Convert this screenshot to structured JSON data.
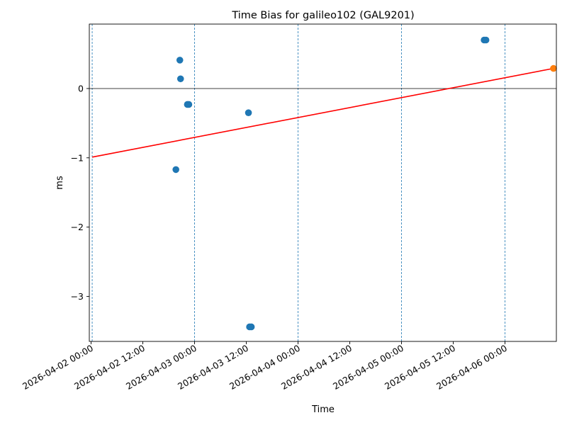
{
  "chart_data": {
    "type": "scatter",
    "title": "Time Bias for galileo102 (GAL9201)",
    "xlabel": "Time",
    "ylabel": "ms",
    "xlim": [
      "2026-04-01T23:35:00",
      "2026-04-06T11:55:00"
    ],
    "ylim": [
      -3.65,
      0.93
    ],
    "x_ticks": [
      {
        "t": "2026-04-02T00:00:00",
        "label": "2026-04-02 00:00"
      },
      {
        "t": "2026-04-02T12:00:00",
        "label": "2026-04-02 12:00"
      },
      {
        "t": "2026-04-03T00:00:00",
        "label": "2026-04-03 00:00"
      },
      {
        "t": "2026-04-03T12:00:00",
        "label": "2026-04-03 12:00"
      },
      {
        "t": "2026-04-04T00:00:00",
        "label": "2026-04-04 00:00"
      },
      {
        "t": "2026-04-04T12:00:00",
        "label": "2026-04-04 12:00"
      },
      {
        "t": "2026-04-05T00:00:00",
        "label": "2026-04-05 00:00"
      },
      {
        "t": "2026-04-05T12:00:00",
        "label": "2026-04-05 12:00"
      },
      {
        "t": "2026-04-06T00:00:00",
        "label": "2026-04-06 00:00"
      }
    ],
    "y_ticks": [
      {
        "v": 0,
        "label": "0"
      },
      {
        "v": -1,
        "label": "−1"
      },
      {
        "v": -2,
        "label": "−2"
      },
      {
        "v": -3,
        "label": "−3"
      }
    ],
    "vertical_lines": [
      "2026-04-02T00:15:00",
      "2026-04-03T00:00:00",
      "2026-04-04T00:00:00",
      "2026-04-05T00:00:00",
      "2026-04-06T00:00:00"
    ],
    "zero_line": 0,
    "series": [
      {
        "kind": "scatter",
        "color": "#1f77b4",
        "points": [
          {
            "x": "2026-04-02T19:40:00",
            "y": -1.17
          },
          {
            "x": "2026-04-02T20:35:00",
            "y": 0.41
          },
          {
            "x": "2026-04-02T20:45:00",
            "y": 0.14
          },
          {
            "x": "2026-04-02T22:20:00",
            "y": -0.23
          },
          {
            "x": "2026-04-02T22:40:00",
            "y": -0.23
          },
          {
            "x": "2026-04-03T12:30:00",
            "y": -0.35
          },
          {
            "x": "2026-04-03T12:45:00",
            "y": -3.44
          },
          {
            "x": "2026-04-03T13:10:00",
            "y": -3.44
          },
          {
            "x": "2026-04-05T19:10:00",
            "y": 0.7
          },
          {
            "x": "2026-04-05T19:35:00",
            "y": 0.7
          }
        ]
      },
      {
        "kind": "line",
        "color": "#ff0000",
        "points": [
          {
            "x": "2026-04-02T00:15:00",
            "y": -0.99
          },
          {
            "x": "2026-04-06T11:15:00",
            "y": 0.29
          }
        ]
      },
      {
        "kind": "scatter",
        "color": "#ff7f0e",
        "points": [
          {
            "x": "2026-04-06T11:15:00",
            "y": 0.29
          }
        ]
      }
    ]
  }
}
